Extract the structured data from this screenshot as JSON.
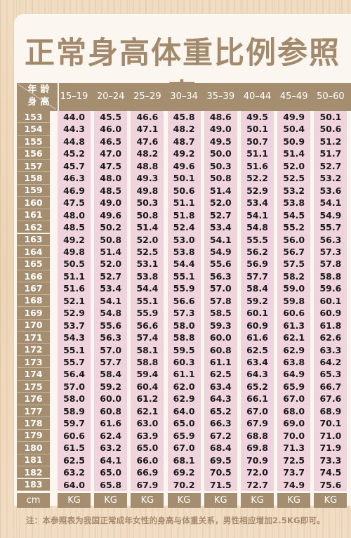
{
  "title": "正常身高体重比例参照表",
  "corner": {
    "age_chars": [
      "年",
      "龄"
    ],
    "height_chars": [
      "身",
      "高"
    ]
  },
  "age_groups": [
    "15–19",
    "20–24",
    "25–29",
    "30–34",
    "35–39",
    "40–44",
    "45–49",
    "50–60"
  ],
  "rows": [
    {
      "h": "153",
      "v": [
        "44.0",
        "45.5",
        "46.6",
        "45.8",
        "48.6",
        "49.5",
        "49.9",
        "50.1"
      ]
    },
    {
      "h": "154",
      "v": [
        "44.3",
        "46.0",
        "47.1",
        "48.2",
        "49.0",
        "50.1",
        "50.4",
        "50.6"
      ]
    },
    {
      "h": "155",
      "v": [
        "44.8",
        "46.5",
        "47.6",
        "48.7",
        "49.5",
        "50.7",
        "50.9",
        "51.2"
      ]
    },
    {
      "h": "156",
      "v": [
        "45.2",
        "47.0",
        "48.2",
        "49.2",
        "50.0",
        "51.1",
        "51.4",
        "51.7"
      ]
    },
    {
      "h": "157",
      "v": [
        "45.7",
        "47.5",
        "48.8",
        "49.6",
        "50.3",
        "51.6",
        "52.0",
        "52.7"
      ]
    },
    {
      "h": "158",
      "v": [
        "46.3",
        "48.0",
        "49.3",
        "50.1",
        "50.8",
        "52.2",
        "52.5",
        "53.2"
      ]
    },
    {
      "h": "159",
      "v": [
        "46.9",
        "48.5",
        "49.8",
        "50.6",
        "51.4",
        "52.9",
        "53.2",
        "53.6"
      ]
    },
    {
      "h": "160",
      "v": [
        "47.5",
        "49.0",
        "50.3",
        "51.1",
        "52.0",
        "53.4",
        "53.8",
        "54.1"
      ]
    },
    {
      "h": "161",
      "v": [
        "48.0",
        "49.6",
        "50.8",
        "51.8",
        "52.7",
        "54.1",
        "54.5",
        "54.9"
      ]
    },
    {
      "h": "162",
      "v": [
        "48.5",
        "50.2",
        "51.4",
        "52.4",
        "53.4",
        "54.8",
        "55.2",
        "55.7"
      ]
    },
    {
      "h": "163",
      "v": [
        "49.2",
        "50.8",
        "52.0",
        "53.0",
        "54.1",
        "55.5",
        "56.0",
        "56.3"
      ]
    },
    {
      "h": "164",
      "v": [
        "49.8",
        "51.4",
        "52.5",
        "53.8",
        "54.9",
        "56.2",
        "56.7",
        "57.3"
      ]
    },
    {
      "h": "165",
      "v": [
        "50.5",
        "52.0",
        "53.1",
        "54.4",
        "55.6",
        "56.9",
        "57.5",
        "57.8"
      ]
    },
    {
      "h": "166",
      "v": [
        "51.1",
        "52.7",
        "53.8",
        "55.1",
        "56.3",
        "57.7",
        "58.2",
        "58.8"
      ]
    },
    {
      "h": "167",
      "v": [
        "51.6",
        "53.4",
        "54.4",
        "55.9",
        "57.0",
        "58.4",
        "59.0",
        "59.6"
      ]
    },
    {
      "h": "168",
      "v": [
        "52.1",
        "54.1",
        "55.1",
        "56.6",
        "57.8",
        "59.2",
        "59.8",
        "60.1"
      ]
    },
    {
      "h": "169",
      "v": [
        "52.9",
        "54.8",
        "55.9",
        "57.3",
        "58.5",
        "60.1",
        "60.6",
        "60.9"
      ]
    },
    {
      "h": "170",
      "v": [
        "53.7",
        "55.6",
        "56.6",
        "58.0",
        "59.3",
        "60.9",
        "61.3",
        "61.8"
      ]
    },
    {
      "h": "171",
      "v": [
        "54.3",
        "56.3",
        "57.4",
        "58.8",
        "60.0",
        "61.6",
        "62.1",
        "62.6"
      ]
    },
    {
      "h": "172",
      "v": [
        "55.1",
        "57.0",
        "58.1",
        "59.5",
        "60.8",
        "62.5",
        "62.9",
        "63.3"
      ]
    },
    {
      "h": "173",
      "v": [
        "55.7",
        "57.7",
        "58.8",
        "60.3",
        "61.1",
        "63.4",
        "63.8",
        "64.2"
      ]
    },
    {
      "h": "174",
      "v": [
        "56.4",
        "58.4",
        "59.4",
        "61.1",
        "62.5",
        "64.3",
        "64.9",
        "65.3"
      ]
    },
    {
      "h": "175",
      "v": [
        "57.0",
        "59.2",
        "60.4",
        "62.0",
        "63.4",
        "65.2",
        "65.9",
        "66.7"
      ]
    },
    {
      "h": "176",
      "v": [
        "58.0",
        "60.0",
        "61.2",
        "62.9",
        "64.3",
        "66.1",
        "67.0",
        "67.6"
      ]
    },
    {
      "h": "177",
      "v": [
        "58.9",
        "60.8",
        "62.1",
        "64.0",
        "65.2",
        "67.0",
        "68.0",
        "68.9"
      ]
    },
    {
      "h": "178",
      "v": [
        "59.7",
        "61.6",
        "63.0",
        "65.0",
        "66.3",
        "67.9",
        "69.0",
        "70.1"
      ]
    },
    {
      "h": "179",
      "v": [
        "60.6",
        "62.4",
        "63.9",
        "65.9",
        "67.2",
        "68.8",
        "70.0",
        "71.0"
      ]
    },
    {
      "h": "180",
      "v": [
        "61.5",
        "63.2",
        "65.0",
        "67.0",
        "68.4",
        "69.8",
        "71.3",
        "71.9"
      ]
    },
    {
      "h": "181",
      "v": [
        "62.5",
        "64.1",
        "66.0",
        "68.1",
        "69.5",
        "70.9",
        "72.5",
        "73.3"
      ]
    },
    {
      "h": "182",
      "v": [
        "63.2",
        "65.0",
        "66.9",
        "69.2",
        "70.5",
        "72.0",
        "73.7",
        "74.5"
      ]
    },
    {
      "h": "183",
      "v": [
        "64.0",
        "65.8",
        "67.9",
        "70.2",
        "71.5",
        "72.7",
        "74.9",
        "75.6"
      ]
    }
  ],
  "height_unit": "cm",
  "weight_unit": "KG",
  "note": "注：本参照表为我国正常成年女性的身高与体重关系，男性相应增加2.5KG即可。",
  "colors": {
    "header": "#a58e6f",
    "cell_pink": "#efd3dd",
    "title": "#a48a6c",
    "wood": "#ecd5b6"
  }
}
